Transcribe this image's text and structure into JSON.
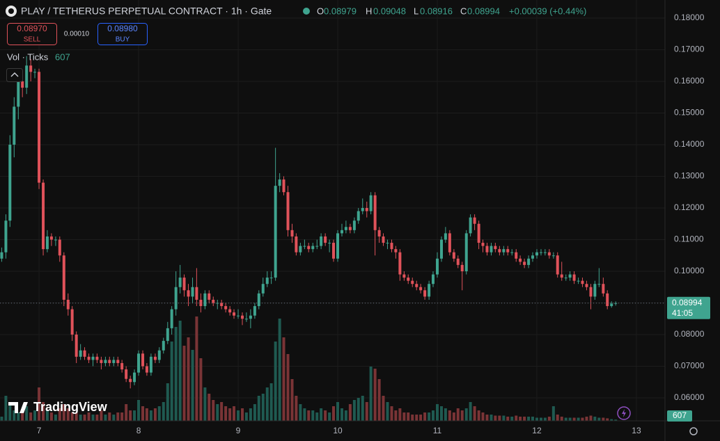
{
  "header": {
    "symbol": "PLAY / TETHERUS PERPETUAL CONTRACT · 1h · Gate",
    "ohlc_keys": [
      "O",
      "H",
      "L",
      "C"
    ],
    "change": "+0.00039 (+0.44%)"
  },
  "trade": {
    "sell_price": "0.08970",
    "sell": "SELL",
    "spread": "0.00010",
    "buy_price": "0.08980",
    "buy": "BUY"
  },
  "indicator": "Vol · Ticks",
  "countdown": "41:05",
  "logo": "TradingView",
  "chart_data": {
    "type": "candlestick",
    "x": [
      6.625,
      6.667,
      6.708,
      6.75,
      6.792,
      6.833,
      6.875,
      6.917,
      6.958,
      7,
      7.042,
      7.083,
      7.125,
      7.167,
      7.208,
      7.25,
      7.292,
      7.333,
      7.375,
      7.417,
      7.458,
      7.5,
      7.542,
      7.583,
      7.625,
      7.667,
      7.708,
      7.75,
      7.792,
      7.833,
      7.875,
      7.917,
      7.958,
      8,
      8.042,
      8.083,
      8.125,
      8.167,
      8.208,
      8.25,
      8.292,
      8.333,
      8.375,
      8.417,
      8.458,
      8.5,
      8.542,
      8.583,
      8.625,
      8.667,
      8.708,
      8.75,
      8.792,
      8.833,
      8.875,
      8.917,
      8.958,
      9,
      9.042,
      9.083,
      9.125,
      9.167,
      9.208,
      9.25,
      9.292,
      9.333,
      9.375,
      9.417,
      9.458,
      9.5,
      9.542,
      9.583,
      9.625,
      9.667,
      9.708,
      9.75,
      9.792,
      9.833,
      9.875,
      9.917,
      9.958,
      10,
      10.042,
      10.083,
      10.125,
      10.167,
      10.208,
      10.25,
      10.292,
      10.333,
      10.375,
      10.417,
      10.458,
      10.5,
      10.542,
      10.583,
      10.625,
      10.667,
      10.708,
      10.75,
      10.792,
      10.833,
      10.875,
      10.917,
      10.958,
      11,
      11.042,
      11.083,
      11.125,
      11.167,
      11.208,
      11.25,
      11.292,
      11.333,
      11.375,
      11.417,
      11.458,
      11.5,
      11.542,
      11.583,
      11.625,
      11.667,
      11.708,
      11.75,
      11.792,
      11.833,
      11.875,
      11.917,
      11.958,
      12,
      12.042,
      12.083,
      12.125,
      12.167,
      12.208,
      12.25,
      12.292,
      12.333,
      12.375,
      12.417,
      12.458,
      12.5,
      12.542,
      12.583,
      12.625,
      12.667,
      12.708,
      12.75,
      12.792
    ],
    "open": [
      0.104,
      0.106,
      0.116,
      0.14,
      0.152,
      0.16,
      0.158,
      0.165,
      0.163,
      0.163,
      0.128,
      0.107,
      0.111,
      0.11,
      0.11,
      0.105,
      0.091,
      0.088,
      0.08,
      0.073,
      0.075,
      0.073,
      0.072,
      0.073,
      0.072,
      0.071,
      0.072,
      0.071,
      0.072,
      0.071,
      0.069,
      0.066,
      0.065,
      0.068,
      0.074,
      0.07,
      0.068,
      0.073,
      0.072,
      0.075,
      0.078,
      0.082,
      0.088,
      0.095,
      0.098,
      0.094,
      0.092,
      0.095,
      0.091,
      0.089,
      0.093,
      0.091,
      0.09,
      0.09,
      0.089,
      0.088,
      0.087,
      0.086,
      0.086,
      0.085,
      0.085,
      0.086,
      0.089,
      0.093,
      0.096,
      0.098,
      0.098,
      0.127,
      0.129,
      0.125,
      0.113,
      0.111,
      0.106,
      0.108,
      0.108,
      0.107,
      0.108,
      0.108,
      0.111,
      0.109,
      0.109,
      0.104,
      0.112,
      0.113,
      0.114,
      0.113,
      0.116,
      0.119,
      0.12,
      0.119,
      0.124,
      0.113,
      0.111,
      0.109,
      0.109,
      0.107,
      0.106,
      0.099,
      0.098,
      0.097,
      0.096,
      0.095,
      0.094,
      0.092,
      0.096,
      0.099,
      0.104,
      0.11,
      0.112,
      0.106,
      0.104,
      0.102,
      0.1,
      0.112,
      0.117,
      0.115,
      0.109,
      0.108,
      0.106,
      0.108,
      0.107,
      0.106,
      0.107,
      0.106,
      0.106,
      0.104,
      0.103,
      0.102,
      0.104,
      0.105,
      0.106,
      0.106,
      0.106,
      0.105,
      0.105,
      0.099,
      0.098,
      0.098,
      0.099,
      0.097,
      0.097,
      0.096,
      0.095,
      0.092,
      0.096,
      0.096,
      0.093,
      0.089,
      0.08979
    ],
    "high": [
      0.1075,
      0.118,
      0.143,
      0.155,
      0.163,
      0.162,
      0.168,
      0.167,
      0.164,
      0.164,
      0.129,
      0.113,
      0.112,
      0.111,
      0.111,
      0.106,
      0.093,
      0.089,
      0.081,
      0.077,
      0.076,
      0.074,
      0.074,
      0.074,
      0.073,
      0.073,
      0.073,
      0.073,
      0.073,
      0.072,
      0.07,
      0.067,
      0.069,
      0.075,
      0.075,
      0.071,
      0.074,
      0.074,
      0.076,
      0.079,
      0.084,
      0.089,
      0.1,
      0.102,
      0.099,
      0.096,
      0.098,
      0.101,
      0.093,
      0.094,
      0.094,
      0.092,
      0.091,
      0.091,
      0.09,
      0.089,
      0.088,
      0.088,
      0.087,
      0.087,
      0.088,
      0.09,
      0.094,
      0.098,
      0.1,
      0.1,
      0.139,
      0.131,
      0.13,
      0.127,
      0.115,
      0.112,
      0.109,
      0.11,
      0.109,
      0.109,
      0.11,
      0.112,
      0.112,
      0.11,
      0.11,
      0.113,
      0.115,
      0.116,
      0.115,
      0.117,
      0.12,
      0.123,
      0.122,
      0.125,
      0.125,
      0.114,
      0.112,
      0.11,
      0.11,
      0.108,
      0.107,
      0.1,
      0.099,
      0.098,
      0.097,
      0.096,
      0.095,
      0.097,
      0.1,
      0.106,
      0.111,
      0.114,
      0.113,
      0.107,
      0.105,
      0.103,
      0.113,
      0.118,
      0.118,
      0.116,
      0.11,
      0.109,
      0.109,
      0.109,
      0.108,
      0.108,
      0.108,
      0.107,
      0.107,
      0.105,
      0.104,
      0.105,
      0.106,
      0.107,
      0.107,
      0.107,
      0.107,
      0.106,
      0.106,
      0.103,
      0.099,
      0.1,
      0.1,
      0.098,
      0.098,
      0.097,
      0.096,
      0.097,
      0.101,
      0.098,
      0.094,
      0.0905,
      0.09048
    ],
    "low": [
      0.103,
      0.104,
      0.114,
      0.136,
      0.148,
      0.155,
      0.156,
      0.16,
      0.161,
      0.126,
      0.105,
      0.106,
      0.108,
      0.108,
      0.103,
      0.089,
      0.086,
      0.078,
      0.071,
      0.072,
      0.072,
      0.071,
      0.07,
      0.071,
      0.069,
      0.07,
      0.07,
      0.07,
      0.07,
      0.068,
      0.065,
      0.063,
      0.064,
      0.067,
      0.069,
      0.067,
      0.067,
      0.071,
      0.071,
      0.074,
      0.077,
      0.08,
      0.086,
      0.093,
      0.092,
      0.089,
      0.09,
      0.089,
      0.087,
      0.088,
      0.09,
      0.089,
      0.088,
      0.088,
      0.087,
      0.086,
      0.085,
      0.085,
      0.083,
      0.084,
      0.082,
      0.085,
      0.088,
      0.092,
      0.095,
      0.096,
      0.097,
      0.125,
      0.124,
      0.111,
      0.109,
      0.105,
      0.105,
      0.107,
      0.106,
      0.106,
      0.107,
      0.107,
      0.108,
      0.106,
      0.103,
      0.103,
      0.111,
      0.112,
      0.112,
      0.112,
      0.115,
      0.118,
      0.117,
      0.118,
      0.105,
      0.109,
      0.108,
      0.107,
      0.106,
      0.104,
      0.097,
      0.097,
      0.096,
      0.095,
      0.094,
      0.093,
      0.091,
      0.091,
      0.095,
      0.098,
      0.103,
      0.109,
      0.105,
      0.103,
      0.101,
      0.094,
      0.099,
      0.111,
      0.113,
      0.107,
      0.106,
      0.105,
      0.105,
      0.106,
      0.105,
      0.105,
      0.105,
      0.105,
      0.103,
      0.102,
      0.101,
      0.101,
      0.103,
      0.104,
      0.105,
      0.105,
      0.104,
      0.104,
      0.098,
      0.097,
      0.097,
      0.097,
      0.096,
      0.096,
      0.095,
      0.094,
      0.088,
      0.091,
      0.095,
      0.092,
      0.088,
      0.0885,
      0.08916
    ],
    "close": [
      0.106,
      0.116,
      0.14,
      0.152,
      0.16,
      0.158,
      0.165,
      0.163,
      0.163,
      0.128,
      0.107,
      0.111,
      0.11,
      0.11,
      0.105,
      0.091,
      0.088,
      0.08,
      0.073,
      0.075,
      0.073,
      0.072,
      0.073,
      0.072,
      0.071,
      0.072,
      0.071,
      0.072,
      0.071,
      0.069,
      0.066,
      0.065,
      0.068,
      0.074,
      0.07,
      0.068,
      0.073,
      0.072,
      0.075,
      0.078,
      0.082,
      0.088,
      0.095,
      0.098,
      0.094,
      0.092,
      0.095,
      0.091,
      0.089,
      0.093,
      0.091,
      0.09,
      0.09,
      0.089,
      0.088,
      0.087,
      0.086,
      0.086,
      0.085,
      0.085,
      0.086,
      0.089,
      0.093,
      0.096,
      0.098,
      0.098,
      0.127,
      0.129,
      0.125,
      0.113,
      0.111,
      0.106,
      0.108,
      0.108,
      0.107,
      0.108,
      0.108,
      0.111,
      0.109,
      0.109,
      0.104,
      0.112,
      0.113,
      0.114,
      0.113,
      0.116,
      0.119,
      0.12,
      0.119,
      0.124,
      0.113,
      0.111,
      0.109,
      0.109,
      0.107,
      0.106,
      0.099,
      0.098,
      0.097,
      0.096,
      0.095,
      0.094,
      0.092,
      0.096,
      0.099,
      0.104,
      0.11,
      0.112,
      0.106,
      0.104,
      0.102,
      0.1,
      0.112,
      0.117,
      0.115,
      0.109,
      0.108,
      0.106,
      0.108,
      0.107,
      0.106,
      0.107,
      0.106,
      0.106,
      0.104,
      0.103,
      0.102,
      0.104,
      0.105,
      0.106,
      0.106,
      0.106,
      0.105,
      0.105,
      0.099,
      0.098,
      0.098,
      0.099,
      0.097,
      0.097,
      0.096,
      0.095,
      0.092,
      0.096,
      0.096,
      0.093,
      0.089,
      0.08979,
      0.08994
    ],
    "volume": [
      2000,
      12000,
      8000,
      5000,
      4000,
      4000,
      7000,
      4000,
      5000,
      16000,
      9000,
      5000,
      4000,
      3000,
      6000,
      8000,
      6000,
      4000,
      4000,
      3000,
      3000,
      4000,
      3000,
      3000,
      5000,
      3000,
      4000,
      3000,
      4000,
      4000,
      8000,
      5000,
      5000,
      10000,
      7000,
      6000,
      5000,
      6000,
      7000,
      9000,
      18000,
      38000,
      45000,
      48000,
      36000,
      40000,
      34000,
      50000,
      30000,
      16000,
      13000,
      10000,
      8000,
      9000,
      7000,
      6000,
      7000,
      5000,
      6000,
      4000,
      6000,
      8000,
      12000,
      13000,
      16000,
      18000,
      38000,
      49000,
      40000,
      32000,
      20000,
      12000,
      8000,
      6000,
      5000,
      5000,
      4000,
      6000,
      5000,
      4000,
      7000,
      9000,
      6000,
      5000,
      8000,
      10000,
      11000,
      12000,
      9000,
      26000,
      25000,
      20000,
      12000,
      9000,
      7000,
      5000,
      6000,
      4000,
      4000,
      3000,
      3000,
      3000,
      4000,
      4000,
      5000,
      8000,
      7000,
      6000,
      5000,
      4000,
      6000,
      5000,
      6000,
      9000,
      7000,
      5000,
      4000,
      3000,
      3000,
      2500,
      2500,
      2500,
      2000,
      2000,
      2500,
      2000,
      2000,
      2000,
      2000,
      1500,
      1500,
      1500,
      2000,
      7000,
      3000,
      2000,
      1500,
      1500,
      1500,
      1500,
      1500,
      2000,
      2500,
      2000,
      1500,
      1500,
      1200,
      800,
      607
    ],
    "xlim": [
      6.608,
      13.287
    ],
    "xticks": [
      7,
      8,
      9,
      10,
      11,
      12,
      13
    ],
    "ylim": [
      0.05275,
      0.18571
    ],
    "yticks": [
      {
        "value": 0.06,
        "label": "0.06000"
      },
      {
        "value": 0.07,
        "label": "0.07000"
      },
      {
        "value": 0.08,
        "label": "0.08000"
      },
      {
        "value": 0.09,
        "label": "0.09000"
      },
      {
        "value": 0.1,
        "label": "0.10000"
      },
      {
        "value": 0.11,
        "label": "0.11000"
      },
      {
        "value": 0.12,
        "label": "0.12000"
      },
      {
        "value": 0.13,
        "label": "0.13000"
      },
      {
        "value": 0.14,
        "label": "0.14000"
      },
      {
        "value": 0.15,
        "label": "0.15000"
      },
      {
        "value": 0.16,
        "label": "0.16000"
      },
      {
        "value": 0.17,
        "label": "0.17000"
      },
      {
        "value": 0.18,
        "label": "0.18000"
      }
    ],
    "volume_ylim": [
      0,
      60000
    ],
    "grid": true,
    "colors": {
      "up": "#3fa48f",
      "down": "#e0525a",
      "up_volume": "#1f5a51",
      "down_volume": "#7a3436"
    }
  }
}
